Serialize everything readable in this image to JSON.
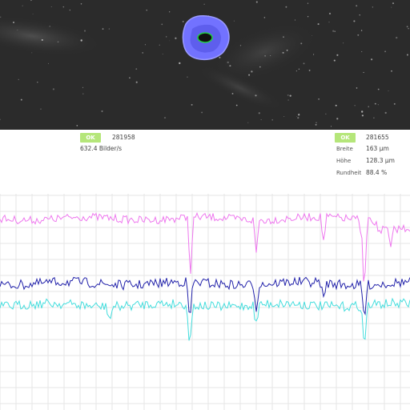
{
  "camera": {
    "colors": {
      "background": "#2b2b2b",
      "particle_fill": "#7070ff",
      "contour": "#22cc44"
    }
  },
  "left_panel": {
    "status": "OK",
    "count": "281958",
    "rate": "632.4 Bilder/s"
  },
  "right_panel": {
    "status": "OK",
    "count": "281655",
    "metrics": [
      {
        "label": "Breite",
        "value": "163 µm"
      },
      {
        "label": "Höhe",
        "value": "128.3 µm"
      },
      {
        "label": "Rundheit",
        "value": "88.4 %"
      }
    ]
  },
  "chart_data": {
    "type": "line",
    "grid": true,
    "series_colors": [
      "#ee77ee",
      "#2222aa",
      "#44dddd"
    ],
    "x_range": [
      0,
      512
    ]
  }
}
